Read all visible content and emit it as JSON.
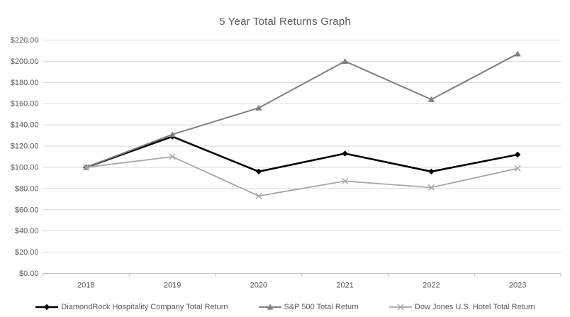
{
  "chart_data": {
    "type": "line",
    "title": "5 Year Total Returns Graph",
    "categories": [
      "2018",
      "2019",
      "2020",
      "2021",
      "2022",
      "2023"
    ],
    "series": [
      {
        "name": "DiamondRock Hospitality Company Total Return",
        "values": [
          100,
          129,
          96,
          113,
          96,
          112
        ],
        "color": "#000000",
        "marker": "diamond"
      },
      {
        "name": "S&P 500 Total Return",
        "values": [
          100,
          131,
          156,
          200,
          164,
          207
        ],
        "color": "#7f7f7f",
        "marker": "triangle"
      },
      {
        "name": "Dow Jones U.S. Hotel Total Return",
        "values": [
          100,
          110,
          73,
          87,
          81,
          99
        ],
        "color": "#a6a6a6",
        "marker": "x"
      }
    ],
    "y_axis": {
      "min": 0,
      "max": 220,
      "step": 20,
      "tick_labels": [
        "$0.00",
        "$20.00",
        "$40.00",
        "$60.00",
        "$80.00",
        "$100.00",
        "$120.00",
        "$140.00",
        "$160.00",
        "$180.00",
        "$200.00",
        "$220.00"
      ]
    },
    "x_axis": {
      "tick_labels": [
        "2018",
        "2019",
        "2020",
        "2021",
        "2022",
        "2023"
      ]
    },
    "legend_position": "bottom",
    "grid": true,
    "colors": {
      "gridline": "#d9d9d9",
      "axis_line": "#bfbfbf",
      "label_text": "#595959",
      "background": "#ffffff"
    }
  }
}
